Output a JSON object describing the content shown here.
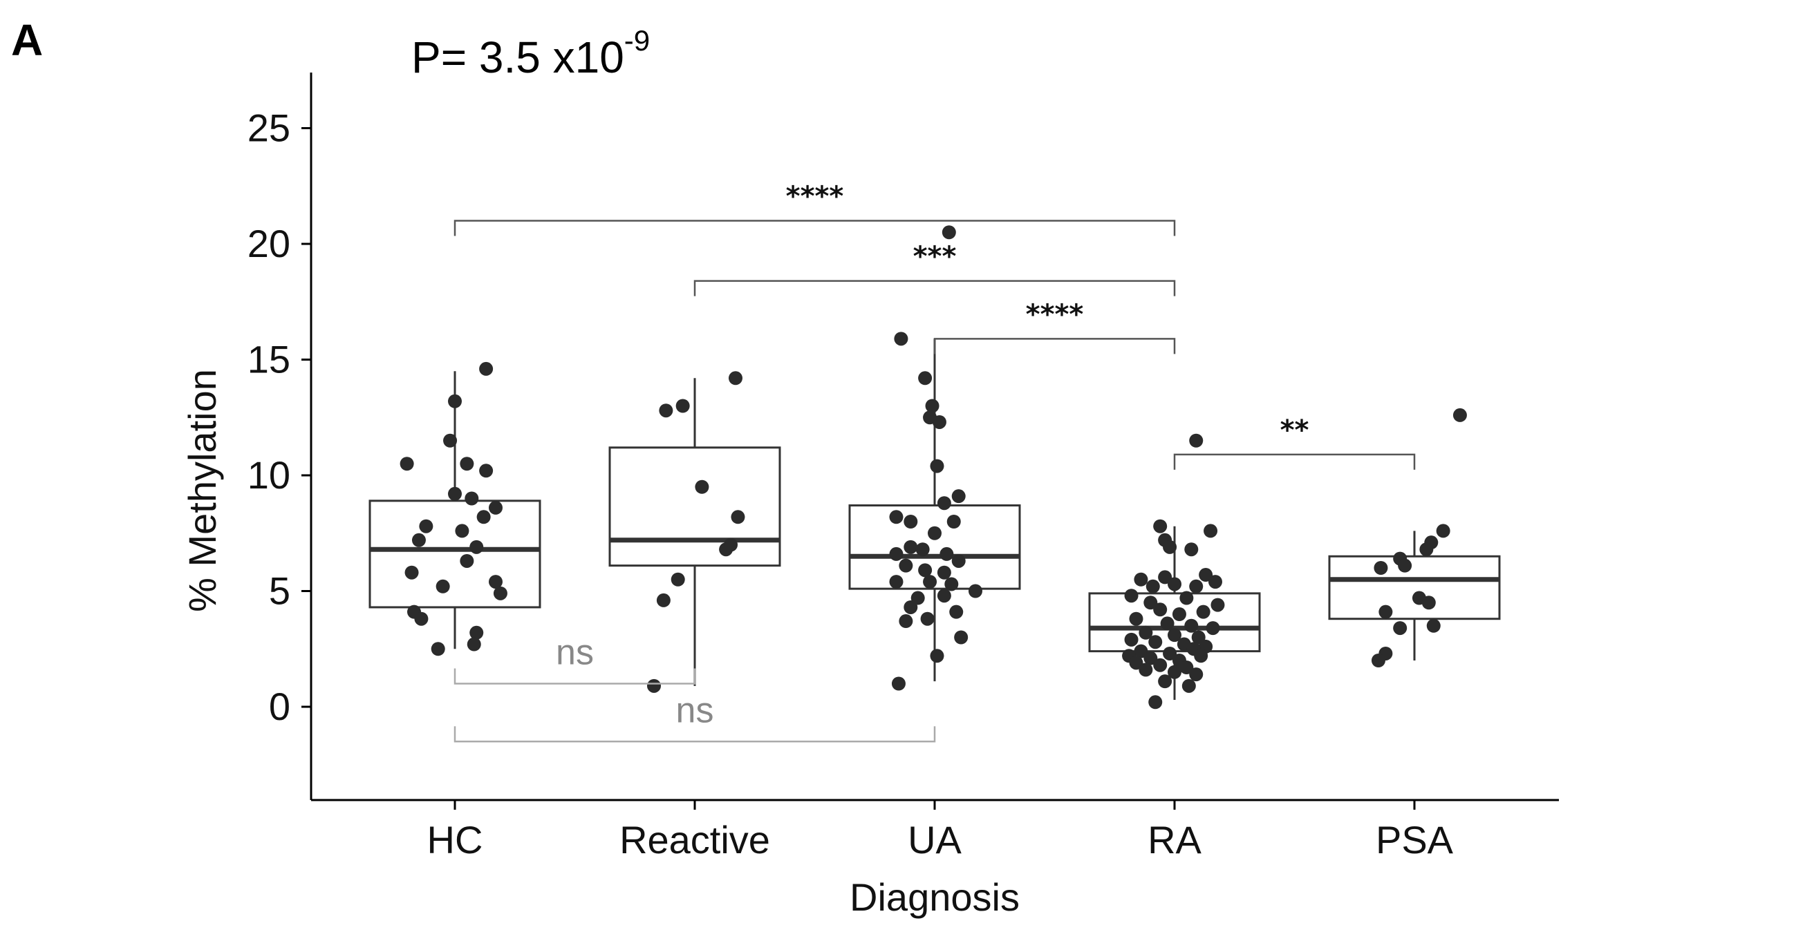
{
  "chart_data": {
    "type": "box",
    "panel_label": "A",
    "annotation": {
      "prefix": "P= 3.5 x10",
      "exponent": "-9"
    },
    "xlabel": "Diagnosis",
    "ylabel": "% Methylation",
    "ylim": [
      -4,
      27.5
    ],
    "yticks": [
      0,
      5,
      10,
      15,
      20,
      25
    ],
    "ytick_labels": [
      "0",
      "5",
      "10",
      "15",
      "20",
      "25"
    ],
    "categories": [
      "HC",
      "Reactive",
      "UA",
      "RA",
      "PSA"
    ],
    "boxes": [
      {
        "name": "HC",
        "q1": 4.3,
        "median": 6.8,
        "q3": 8.9,
        "whisker_low": 2.5,
        "whisker_high": 14.5
      },
      {
        "name": "Reactive",
        "q1": 6.1,
        "median": 7.2,
        "q3": 11.2,
        "whisker_low": 0.9,
        "whisker_high": 14.2
      },
      {
        "name": "UA",
        "q1": 5.1,
        "median": 6.5,
        "q3": 8.7,
        "whisker_low": 1.1,
        "whisker_high": 15.9
      },
      {
        "name": "RA",
        "q1": 2.4,
        "median": 3.4,
        "q3": 4.9,
        "whisker_low": 0.3,
        "whisker_high": 7.8
      },
      {
        "name": "PSA",
        "q1": 3.8,
        "median": 5.5,
        "q3": 6.5,
        "whisker_low": 2.0,
        "whisker_high": 7.6
      }
    ],
    "points": [
      {
        "group": "HC",
        "jitter": -0.2,
        "y": 10.5
      },
      {
        "group": "HC",
        "jitter": -0.12,
        "y": 7.8
      },
      {
        "group": "HC",
        "jitter": -0.15,
        "y": 7.2
      },
      {
        "group": "HC",
        "jitter": -0.18,
        "y": 5.8
      },
      {
        "group": "HC",
        "jitter": -0.05,
        "y": 5.2
      },
      {
        "group": "HC",
        "jitter": -0.17,
        "y": 4.1
      },
      {
        "group": "HC",
        "jitter": -0.14,
        "y": 3.8
      },
      {
        "group": "HC",
        "jitter": -0.07,
        "y": 2.5
      },
      {
        "group": "HC",
        "jitter": 0.0,
        "y": 13.2
      },
      {
        "group": "HC",
        "jitter": -0.02,
        "y": 11.5
      },
      {
        "group": "HC",
        "jitter": 0.05,
        "y": 10.5
      },
      {
        "group": "HC",
        "jitter": 0.0,
        "y": 9.2
      },
      {
        "group": "HC",
        "jitter": 0.07,
        "y": 9.0
      },
      {
        "group": "HC",
        "jitter": 0.12,
        "y": 8.2
      },
      {
        "group": "HC",
        "jitter": 0.17,
        "y": 8.6
      },
      {
        "group": "HC",
        "jitter": 0.03,
        "y": 7.6
      },
      {
        "group": "HC",
        "jitter": 0.09,
        "y": 6.9
      },
      {
        "group": "HC",
        "jitter": 0.05,
        "y": 6.3
      },
      {
        "group": "HC",
        "jitter": 0.17,
        "y": 5.4
      },
      {
        "group": "HC",
        "jitter": 0.19,
        "y": 4.9
      },
      {
        "group": "HC",
        "jitter": 0.09,
        "y": 3.2
      },
      {
        "group": "HC",
        "jitter": 0.08,
        "y": 2.7
      },
      {
        "group": "HC",
        "jitter": 0.13,
        "y": 10.2
      },
      {
        "group": "HC",
        "jitter": 0.13,
        "y": 14.6
      },
      {
        "group": "Reactive",
        "jitter": -0.12,
        "y": 12.8
      },
      {
        "group": "Reactive",
        "jitter": -0.05,
        "y": 13.0
      },
      {
        "group": "Reactive",
        "jitter": 0.17,
        "y": 14.2
      },
      {
        "group": "Reactive",
        "jitter": 0.03,
        "y": 9.5
      },
      {
        "group": "Reactive",
        "jitter": 0.18,
        "y": 8.2
      },
      {
        "group": "Reactive",
        "jitter": 0.13,
        "y": 6.8
      },
      {
        "group": "Reactive",
        "jitter": 0.15,
        "y": 7.0
      },
      {
        "group": "Reactive",
        "jitter": -0.07,
        "y": 5.5
      },
      {
        "group": "Reactive",
        "jitter": -0.13,
        "y": 4.6
      },
      {
        "group": "Reactive",
        "jitter": -0.17,
        "y": 0.9
      },
      {
        "group": "UA",
        "jitter": -0.14,
        "y": 15.9
      },
      {
        "group": "UA",
        "jitter": -0.04,
        "y": 14.2
      },
      {
        "group": "UA",
        "jitter": -0.01,
        "y": 13.0
      },
      {
        "group": "UA",
        "jitter": -0.02,
        "y": 12.5
      },
      {
        "group": "UA",
        "jitter": 0.02,
        "y": 12.3
      },
      {
        "group": "UA",
        "jitter": 0.06,
        "y": 20.5
      },
      {
        "group": "UA",
        "jitter": 0.01,
        "y": 10.4
      },
      {
        "group": "UA",
        "jitter": 0.1,
        "y": 9.1
      },
      {
        "group": "UA",
        "jitter": 0.04,
        "y": 8.8
      },
      {
        "group": "UA",
        "jitter": -0.16,
        "y": 8.2
      },
      {
        "group": "UA",
        "jitter": -0.1,
        "y": 8.0
      },
      {
        "group": "UA",
        "jitter": 0.08,
        "y": 8.0
      },
      {
        "group": "UA",
        "jitter": 0.0,
        "y": 7.5
      },
      {
        "group": "UA",
        "jitter": -0.1,
        "y": 6.9
      },
      {
        "group": "UA",
        "jitter": -0.05,
        "y": 6.8
      },
      {
        "group": "UA",
        "jitter": -0.16,
        "y": 6.6
      },
      {
        "group": "UA",
        "jitter": 0.05,
        "y": 6.6
      },
      {
        "group": "UA",
        "jitter": 0.1,
        "y": 6.3
      },
      {
        "group": "UA",
        "jitter": -0.12,
        "y": 6.1
      },
      {
        "group": "UA",
        "jitter": -0.04,
        "y": 5.9
      },
      {
        "group": "UA",
        "jitter": 0.04,
        "y": 5.8
      },
      {
        "group": "UA",
        "jitter": -0.16,
        "y": 5.4
      },
      {
        "group": "UA",
        "jitter": -0.02,
        "y": 5.4
      },
      {
        "group": "UA",
        "jitter": 0.07,
        "y": 5.3
      },
      {
        "group": "UA",
        "jitter": 0.17,
        "y": 5.0
      },
      {
        "group": "UA",
        "jitter": -0.07,
        "y": 4.7
      },
      {
        "group": "UA",
        "jitter": 0.04,
        "y": 4.8
      },
      {
        "group": "UA",
        "jitter": -0.1,
        "y": 4.3
      },
      {
        "group": "UA",
        "jitter": 0.09,
        "y": 4.1
      },
      {
        "group": "UA",
        "jitter": -0.12,
        "y": 3.7
      },
      {
        "group": "UA",
        "jitter": -0.03,
        "y": 3.8
      },
      {
        "group": "UA",
        "jitter": 0.11,
        "y": 3.0
      },
      {
        "group": "UA",
        "jitter": 0.01,
        "y": 2.2
      },
      {
        "group": "UA",
        "jitter": -0.15,
        "y": 1.0
      },
      {
        "group": "RA",
        "jitter": 0.09,
        "y": 11.5
      },
      {
        "group": "RA",
        "jitter": -0.06,
        "y": 7.8
      },
      {
        "group": "RA",
        "jitter": 0.15,
        "y": 7.6
      },
      {
        "group": "RA",
        "jitter": -0.04,
        "y": 7.2
      },
      {
        "group": "RA",
        "jitter": -0.02,
        "y": 6.9
      },
      {
        "group": "RA",
        "jitter": 0.07,
        "y": 6.8
      },
      {
        "group": "RA",
        "jitter": -0.14,
        "y": 5.5
      },
      {
        "group": "RA",
        "jitter": -0.04,
        "y": 5.6
      },
      {
        "group": "RA",
        "jitter": 0.13,
        "y": 5.7
      },
      {
        "group": "RA",
        "jitter": 0.17,
        "y": 5.4
      },
      {
        "group": "RA",
        "jitter": -0.09,
        "y": 5.2
      },
      {
        "group": "RA",
        "jitter": 0.0,
        "y": 5.3
      },
      {
        "group": "RA",
        "jitter": 0.09,
        "y": 5.2
      },
      {
        "group": "RA",
        "jitter": -0.18,
        "y": 4.8
      },
      {
        "group": "RA",
        "jitter": -0.1,
        "y": 4.5
      },
      {
        "group": "RA",
        "jitter": 0.05,
        "y": 4.7
      },
      {
        "group": "RA",
        "jitter": 0.18,
        "y": 4.4
      },
      {
        "group": "RA",
        "jitter": -0.06,
        "y": 4.2
      },
      {
        "group": "RA",
        "jitter": 0.02,
        "y": 4.0
      },
      {
        "group": "RA",
        "jitter": 0.12,
        "y": 4.1
      },
      {
        "group": "RA",
        "jitter": -0.16,
        "y": 3.8
      },
      {
        "group": "RA",
        "jitter": -0.03,
        "y": 3.6
      },
      {
        "group": "RA",
        "jitter": 0.07,
        "y": 3.5
      },
      {
        "group": "RA",
        "jitter": 0.16,
        "y": 3.4
      },
      {
        "group": "RA",
        "jitter": -0.12,
        "y": 3.2
      },
      {
        "group": "RA",
        "jitter": 0.0,
        "y": 3.1
      },
      {
        "group": "RA",
        "jitter": 0.1,
        "y": 3.0
      },
      {
        "group": "RA",
        "jitter": -0.18,
        "y": 2.9
      },
      {
        "group": "RA",
        "jitter": -0.08,
        "y": 2.8
      },
      {
        "group": "RA",
        "jitter": 0.04,
        "y": 2.7
      },
      {
        "group": "RA",
        "jitter": 0.13,
        "y": 2.6
      },
      {
        "group": "RA",
        "jitter": -0.14,
        "y": 2.4
      },
      {
        "group": "RA",
        "jitter": -0.02,
        "y": 2.3
      },
      {
        "group": "RA",
        "jitter": 0.08,
        "y": 2.5
      },
      {
        "group": "RA",
        "jitter": -0.19,
        "y": 2.2
      },
      {
        "group": "RA",
        "jitter": -0.1,
        "y": 2.1
      },
      {
        "group": "RA",
        "jitter": 0.02,
        "y": 2.0
      },
      {
        "group": "RA",
        "jitter": 0.11,
        "y": 2.2
      },
      {
        "group": "RA",
        "jitter": -0.16,
        "y": 1.9
      },
      {
        "group": "RA",
        "jitter": -0.06,
        "y": 1.8
      },
      {
        "group": "RA",
        "jitter": 0.05,
        "y": 1.7
      },
      {
        "group": "RA",
        "jitter": -0.12,
        "y": 1.6
      },
      {
        "group": "RA",
        "jitter": 0.0,
        "y": 1.5
      },
      {
        "group": "RA",
        "jitter": 0.09,
        "y": 1.4
      },
      {
        "group": "RA",
        "jitter": -0.04,
        "y": 1.1
      },
      {
        "group": "RA",
        "jitter": 0.06,
        "y": 0.9
      },
      {
        "group": "RA",
        "jitter": -0.08,
        "y": 0.2
      },
      {
        "group": "PSA",
        "jitter": 0.19,
        "y": 12.6
      },
      {
        "group": "PSA",
        "jitter": 0.12,
        "y": 7.6
      },
      {
        "group": "PSA",
        "jitter": 0.07,
        "y": 7.1
      },
      {
        "group": "PSA",
        "jitter": 0.05,
        "y": 6.8
      },
      {
        "group": "PSA",
        "jitter": -0.06,
        "y": 6.4
      },
      {
        "group": "PSA",
        "jitter": -0.04,
        "y": 6.1
      },
      {
        "group": "PSA",
        "jitter": -0.14,
        "y": 6.0
      },
      {
        "group": "PSA",
        "jitter": -0.12,
        "y": 4.1
      },
      {
        "group": "PSA",
        "jitter": 0.02,
        "y": 4.7
      },
      {
        "group": "PSA",
        "jitter": 0.06,
        "y": 4.5
      },
      {
        "group": "PSA",
        "jitter": -0.06,
        "y": 3.4
      },
      {
        "group": "PSA",
        "jitter": 0.08,
        "y": 3.5
      },
      {
        "group": "PSA",
        "jitter": -0.12,
        "y": 2.3
      },
      {
        "group": "PSA",
        "jitter": -0.15,
        "y": 2.0
      }
    ],
    "comparisons": [
      {
        "from": "HC",
        "to": "RA",
        "y": 21.0,
        "label": "****",
        "color": "#555555",
        "label_class": "sig-dark"
      },
      {
        "from": "Reactive",
        "to": "RA",
        "y": 18.4,
        "label": "***",
        "color": "#555555",
        "label_class": "sig-dark"
      },
      {
        "from": "UA",
        "to": "RA",
        "y": 15.9,
        "label": "****",
        "color": "#555555",
        "label_class": "sig-dark"
      },
      {
        "from": "RA",
        "to": "PSA",
        "y": 10.9,
        "label": "**",
        "color": "#555555",
        "label_class": "sig-dark"
      },
      {
        "from": "HC",
        "to": "Reactive",
        "y": 1.0,
        "label": "ns",
        "color": "#aaaaaa",
        "label_class": "sig-ns"
      },
      {
        "from": "HC",
        "to": "UA",
        "y": -1.5,
        "label": "ns",
        "color": "#aaaaaa",
        "label_class": "sig-ns"
      }
    ],
    "grid": false,
    "point_color": "#2b2b2b"
  }
}
